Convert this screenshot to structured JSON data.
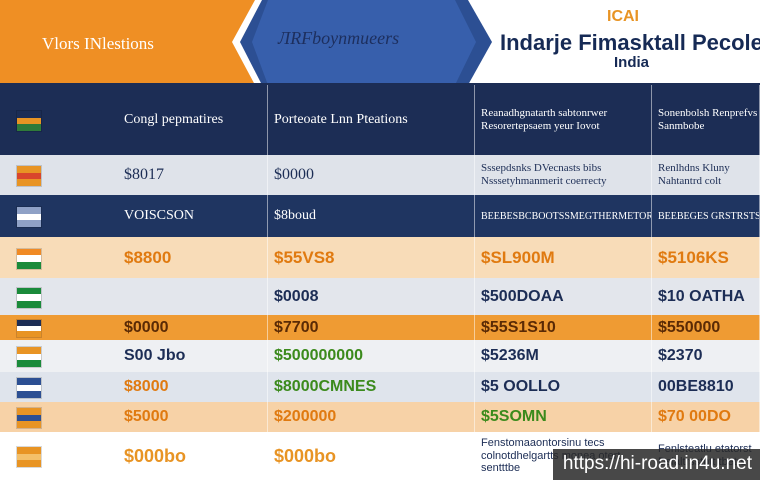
{
  "header": {
    "left_title": "Vlors INlestions",
    "middle_title": "ЛRFboynmueers",
    "badge": "ICAI",
    "right_title": "Indarje Fimasktall Pecole",
    "right_subtitle": "India"
  },
  "table": {
    "rows": [
      [
        "Congl pepmatires",
        "Porteoate Lnn Pteations",
        "Reanadhgnatarth sabtonrwer Resorertepsaem yeur Iovot",
        "Sonenbolsh Renprefvs Sanmbobe"
      ],
      [
        "$8017",
        "$0000",
        "Sssepdsnks DVecnasts bibs Nsssetyhmanmerit coerrecty",
        "Renlhdns Kluny Nahtantrd colt"
      ],
      [
        "VOISCSON",
        "$8boud",
        "BEEBESBCBOOTSSMEGTHERMETOR",
        "BEEBEGES GRSTRSTSS"
      ],
      [
        "$8800",
        "$55VS8",
        "$SL900M",
        "$5106KS"
      ],
      [
        null,
        "$0008",
        "$500DOAA",
        "$10 OATHA"
      ],
      [
        "$0000",
        "$7700",
        "$55S1S10",
        "$550000"
      ],
      [
        "S00 Jbo",
        "$500000000",
        "$5236M",
        "$2370"
      ],
      [
        "$8000",
        "$8000CMNES",
        "$5 OOLLO",
        "00BE8810"
      ],
      [
        "$5000",
        "$200000",
        "$5SOMN",
        "$70 00DO"
      ],
      [
        "$000bo",
        "$000bo",
        "Fenstomaaontorsinu tecs colnotdhelgartts monea otert sentttbe",
        "Fenlsteatlu etatorst Dslaltrsstntt tbetrs"
      ]
    ]
  },
  "watermark": "https://hi-road.in4u.net"
}
